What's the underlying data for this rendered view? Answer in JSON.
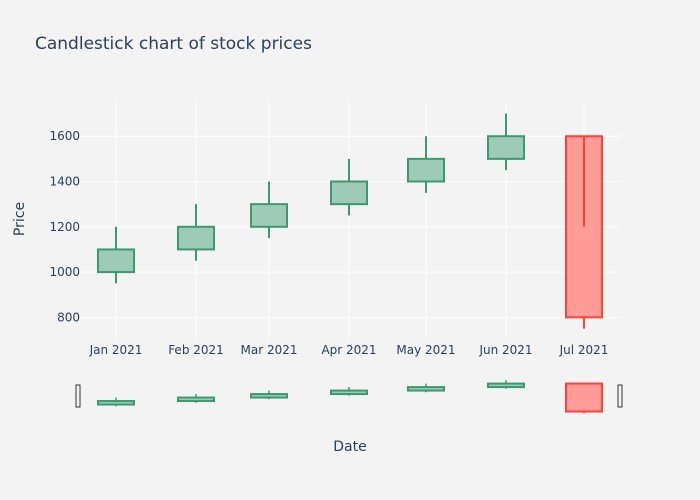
{
  "chart_data": {
    "type": "candlestick",
    "title": "Candlestick chart of stock prices",
    "xlabel": "Date",
    "ylabel": "Price",
    "categories": [
      "Jan 2021",
      "Feb 2021",
      "Mar 2021",
      "Apr 2021",
      "May 2021",
      "Jun 2021",
      "Jul 2021"
    ],
    "open": [
      1000,
      1100,
      1200,
      1300,
      1400,
      1500,
      1600
    ],
    "high": [
      1200,
      1300,
      1400,
      1500,
      1600,
      1700,
      1600
    ],
    "low": [
      950,
      1050,
      1150,
      1250,
      1350,
      1450,
      750
    ],
    "close": [
      1100,
      1200,
      1300,
      1400,
      1500,
      1600,
      800
    ],
    "ylim": [
      700,
      1760
    ],
    "yticks": [
      800,
      1000,
      1200,
      1400,
      1600
    ],
    "grid": true,
    "rangeslider": true,
    "colors": {
      "increasing_line": "#3d9970",
      "increasing_fill": "#9ecbb8",
      "decreasing_line": "#ff4136",
      "decreasing_fill": "#ff9c97",
      "grid": "#ffffff",
      "text": "#2a3f5f",
      "background": "#f3f3f3"
    }
  }
}
